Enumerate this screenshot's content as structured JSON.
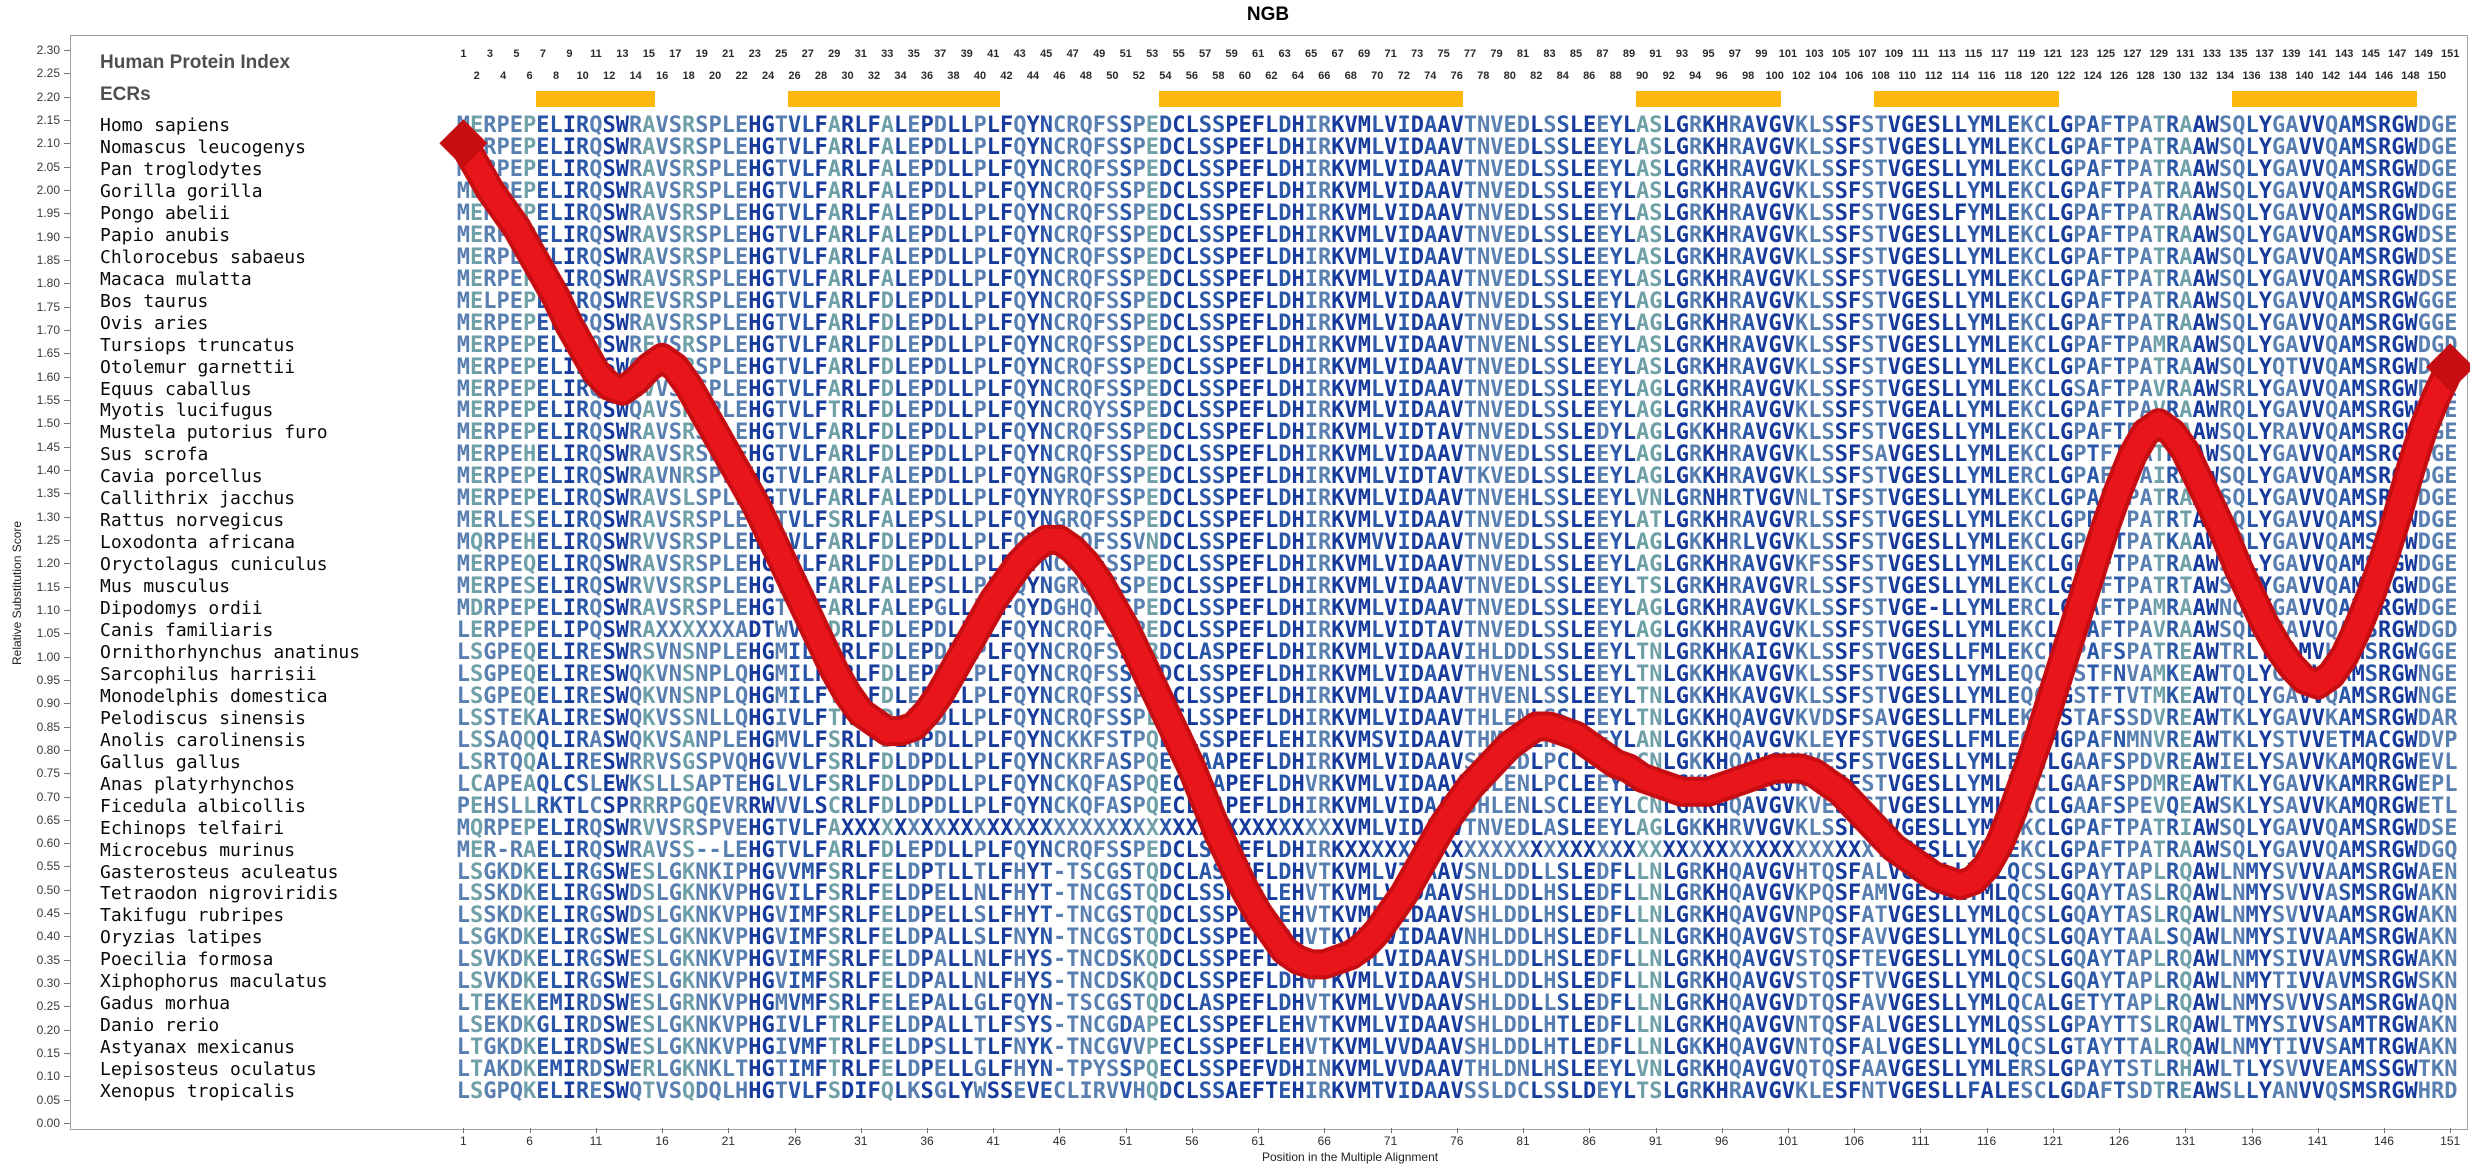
{
  "title": "NGB",
  "panel": {
    "human_protein_index_label": "Human Protein Index",
    "ecrs_label": "ECRs"
  },
  "colors": {
    "curve_red": "#e8151b",
    "curve_red_dark": "#c60d12",
    "ecr_orange": "#fdb80e",
    "conservation_palette": [
      "#163a9c",
      "#2b57a8",
      "#597fb0",
      "#6fa0a8",
      "#9bc49a"
    ],
    "background": "#ffffff"
  },
  "chart_data": {
    "type": "line",
    "title": "NGB",
    "xlabel": "Position in the Multiple Alignment",
    "ylabel": "Relative Substitution Score",
    "ylim": [
      0.0,
      2.3
    ],
    "ytick_step": 0.05,
    "xtick_start": 1,
    "xtick_end": 151,
    "xtick_step": 5,
    "ruler": {
      "odd_start": 1,
      "odd_end": 151,
      "even_start": 2,
      "even_end": 150
    },
    "legend_position": "none",
    "grid": false,
    "scores": [
      2.1,
      2.05,
      2.0,
      1.96,
      1.92,
      1.87,
      1.82,
      1.77,
      1.71,
      1.66,
      1.61,
      1.58,
      1.57,
      1.59,
      1.62,
      1.64,
      1.62,
      1.58,
      1.53,
      1.48,
      1.43,
      1.38,
      1.33,
      1.27,
      1.21,
      1.15,
      1.09,
      1.03,
      0.97,
      0.92,
      0.88,
      0.86,
      0.84,
      0.84,
      0.85,
      0.88,
      0.92,
      0.97,
      1.02,
      1.07,
      1.12,
      1.16,
      1.2,
      1.23,
      1.25,
      1.25,
      1.23,
      1.2,
      1.16,
      1.11,
      1.06,
      1.0,
      0.94,
      0.88,
      0.82,
      0.76,
      0.69,
      0.62,
      0.56,
      0.5,
      0.45,
      0.41,
      0.37,
      0.35,
      0.34,
      0.34,
      0.35,
      0.36,
      0.38,
      0.41,
      0.45,
      0.49,
      0.54,
      0.59,
      0.64,
      0.68,
      0.72,
      0.75,
      0.78,
      0.81,
      0.83,
      0.85,
      0.85,
      0.84,
      0.83,
      0.81,
      0.79,
      0.77,
      0.76,
      0.74,
      0.73,
      0.72,
      0.71,
      0.71,
      0.71,
      0.72,
      0.73,
      0.74,
      0.75,
      0.76,
      0.76,
      0.76,
      0.75,
      0.73,
      0.71,
      0.68,
      0.65,
      0.62,
      0.59,
      0.57,
      0.55,
      0.53,
      0.52,
      0.51,
      0.52,
      0.55,
      0.6,
      0.67,
      0.75,
      0.83,
      0.92,
      1.01,
      1.1,
      1.19,
      1.28,
      1.36,
      1.43,
      1.48,
      1.5,
      1.48,
      1.44,
      1.38,
      1.32,
      1.26,
      1.19,
      1.13,
      1.07,
      1.02,
      0.98,
      0.95,
      0.94,
      0.96,
      1.0,
      1.06,
      1.13,
      1.21,
      1.3,
      1.4,
      1.49,
      1.56,
      1.62
    ],
    "ecr_regions": [
      [
        7,
        15
      ],
      [
        26,
        41
      ],
      [
        54,
        76
      ],
      [
        90,
        100
      ],
      [
        108,
        121
      ],
      [
        135,
        148
      ]
    ],
    "alignment": {
      "species": [
        "Homo sapiens",
        "Nomascus leucogenys",
        "Pan troglodytes",
        "Gorilla gorilla",
        "Pongo abelii",
        "Papio anubis",
        "Chlorocebus sabaeus",
        "Macaca mulatta",
        "Bos taurus",
        "Ovis aries",
        "Tursiops truncatus",
        "Otolemur garnettii",
        "Equus caballus",
        "Myotis lucifugus",
        "Mustela putorius furo",
        "Sus scrofa",
        "Cavia porcellus",
        "Callithrix jacchus",
        "Rattus norvegicus",
        "Loxodonta africana",
        "Oryctolagus cuniculus",
        "Mus musculus",
        "Dipodomys ordii",
        "Canis familiaris",
        "Ornithorhynchus anatinus",
        "Sarcophilus harrisii",
        "Monodelphis domestica",
        "Pelodiscus sinensis",
        "Anolis carolinensis",
        "Gallus gallus",
        "Anas platyrhynchos",
        "Ficedula albicollis",
        "Echinops telfairi",
        "Microcebus murinus",
        "Gasterosteus aculeatus",
        "Tetraodon nigroviridis",
        "Takifugu rubripes",
        "Oryzias latipes",
        "Poecilia formosa",
        "Xiphophorus maculatus",
        "Gadus morhua",
        "Danio rerio",
        "Astyanax mexicanus",
        "Lepisosteus oculatus",
        "Xenopus tropicalis"
      ],
      "sequences": [
        "MERPEPELIRQSWRAVSRSPLEHGTVLFARLFALEPDLLPLFQYNCRQFSSPEDCLSSPEFLDHIRKVMLVIDAAVTNVEDLSSLEEYLASLGRKHRAVGVKLSSFSTVGESLLYMLEKCLGPAFTPATRAAWSQLYGAVVQAMSRGWDGE",
        "MERPEPELIRQSWRAVSRSPLEHGTVLFARLFALEPDLLPLFQYNCRQFSSPEDCLSSPEFLDHIRKVMLVIDAAVTNVEDLSSLEEYLASLGRKHRAVGVKLSSFSTVGESLLYMLEKCLGPAFTPATRAAWSQLYGAVVQAMSRGWDGE",
        "MERPEPELIRQSWRAVSRSPLEHGTVLFARLFALEPDLLPLFQYNCRQFSSPEDCLSSPEFLDHIRKVMLVIDAAVTNVEDLSSLEEYLASLGRKHRAVGVKLSSFSTVGESLLYMLEKCLGPAFTPATRAAWSQLYGAVVQAMSRGWDGE",
        "MDRPEPELIRQSWRAVSRSPLEHGTVLFARLFALEPDLLPLFQYNCRQFSSPEDCLSSPEFLDHIRKVMLVIDAAVTNVEDLSSLEEYLASLGRKHRAVGVKLSSFSTVGESLLYMLEKCLGPAFTPATRAAWSQLYGAVVQAMSRGWDGE",
        "MERPEPELIRQSWRAVSRSPLEHGTVLFARLFALEPDLLPLFQYNCRQFSSPEDCLSSPEFLDHIRKVMLVIDAAVTNVEDLSSLEEYLASLGRKHRAVGVKLSSFSTVGESLFYMLEKCLGPAFTPATRAAWSQLYGAVVQAMSRGWDGE",
        "MERPEPELIRQSWRAVSRSPLEHGTVLFARLFALEPDLLPLFQYNCRQFSSPEDCLSSPEFLDHIRKVMLVIDAAVTNVEDLSSLEEYLASLGRKHRAVGVKLSSFSTVGESLLYMLEKCLGPAFTPATRAAWSQLYGAVVQAMSRGWDSE",
        "MERPEPELIRQSWRAVSRSPLEHGTVLFARLFALEPDLLPLFQYNCRQFSSPEDCLSSPEFLDHIRKVMLVIDAAVTNVEDLSSLEEYLASLGRKHRAVGVKLSSFSTVGESLLYMLEKCLGPAFTPATRAAWSQLYGAVVQAMSRGWDSE",
        "MERPEPELIRQSWRAVSRSPLEHGTVLFARLFALEPDLLPLFQYNCRQFSSPEDCLSSPEFLDHIRKVMLVIDAAVTNVEDLSSLEEYLASLGRKHRAVGVKLSSFSTVGESLLYMLEKCLGPAFTPATRAAWSQLYGAVVQAMSRGWDSE",
        "MELPEPELIRQSWREVSRSPLEHGTVLFARLFDLEPDLLPLFQYNCRQFSSPEDCLSSPEFLDHIRKVMLVIDAAVTNVEDLSSLEEYLAGLGRKHRAVGVKLSSFSTVGESLLYMLEKCLGPAFTPATRAAWSQLYGAVVQAMSRGWGGE",
        "MERPEPELIRQSWRAVSRSPLEHGTVLFARLFDLEPDLLPLFQYNCRQFSSPEDCLSSPEFLDHIRKVMLVIDAAVTNVEDLSSLEEYLAGLGRKHRAVGVKLSSFSTVGESLLYMLEKCLGPAFTPATRAAWSQLYGAVVQAMSRGWGGE",
        "MERPEPELIRQSWREVSRSPLEHGTVLFARLFDLEPDLLPLFQYNCRQFSSPEDCLSSPEFLDHIRKVMLVIDAAVTNVENLSSLEEYLASLGRKHRAVGVKLSSFSTVGESLLYMLEKCLGPAFTPAMRAAWSQLYGAVVQAMSRGWDGD",
        "MERPEPELIRQSWQAVSRSPLEHGTVLFARLFDLEPDLLPLFQYNCRQFSSPEDCLSSPEFLDHIRKVMLVIDAAVTNVEDLSSLEEYLASLGRKHRAVGVKLSSFSTVGESLLYMLEKCLGPAFTPATRAAWSQLYQTVVQAMSRGWDGQ",
        "MERPEPELIRQSWRVVSRSPLEHGTVLFARLFDLEPDLLPLFQYNCRQFSSPEDCLSSPEFLDHIRKVMLVIDAAVTNVEDLSSLEEYLAGLGRKHRAVGVKLSSFSTVGESLLYMLEKCLGSAFTPAVRAAWSRLYGAVVQAMSRGWDGE",
        "MERPEPELIRQSWQAVSRSPLEHGTVLFTRLFDLEPDLLPLFQYNCRQYSSPEDCLSSPEFLDHIRKVMLVIDAAVTNVEDLSSLEEYLAGLGRKHRAVGVKLSSFSTVGEALLYMLEKCLGPAFTPAVRAAWRQLYGAVVQAMSRGWDGE",
        "MERPEPELIRQSWRAVSRSPLEHGTVLFARLFDLEPDLLPLFQYNCRQFSSPEDCLSSPEFLDHIRKVMLVIDTAVTNVEDLSSLEDYLAGLGKKHRAVGVKLSSFSTVGESLLYMLEKCLGPAFTPAMRAAWSQLYRAVVQAMSRGWDGE",
        "MERPEHELIRQSWRAVSRSPLEHGTVLFARLFDLEPDLLPLFQYNCRQFSSPEDCLSSPEFLDHIRKVMLVIDAAVTNVEDLSSLEEYLAGLGRKHRAVGVKLSSFSAVGESLLYMLEKCLGPTFTPATRAAWSQLYGAVVQAMSRGWNGE",
        "MERPEPELIRQSWRAVNRSPLEHGTVLFARLFALEPDLLPLFQYNGRQFSSPEDCLSSPEFLDHIRKVMLVIDTAVTKVEDLSSLEEYLAGLGKKHRAVGVKLSSFSTVGESLLYMLERCLGPAFTPAIRAAWSQLYGAVVQAMSRGWDGE",
        "MERPEPELIRQSWRAVSLSPLEHGTVLFARLFALEPDLLPLFQYNYRQFSSPEDCLSSPEFLDHIRKVMLVIDAAVTNVEHLSSLEEYLVNLGRNHRTVGVNLTSFSTVGESLLYMLEKCLGPAFTPATRAAWSQLYGAVVQAMSRGWDGE",
        "MERLESELIRQSWRAVSRSPLEHGTVLFSRLFALEPSLLPLFQYNGRQFSSPEDCLSSPEFLDHIRKVMLVIDAAVTNVEDLSSLEEYLATLGRKHRAVGVRLSSFSTVGESLLYMLEKCLGPDFTPATRTAWSQLYGAVVQAMSRGWDGE",
        "MQRPEHELIRQSWRVVSRSPLEHGTVLFARLFDLEPDLLPLFQYNCRQFSSVNDCLSSPEFLDHIRKVMVVIDAAVTNVEDLSSLEEYLAGLGKKHRLVGVKLSSFSTVGESLLYMLEKCLGPAFTPATKAAWSQLYGAVVQAMSRGWDGE",
        "MERPEQELIRQSWRAVSRSPLEHGTVLFARLFDLEPDLLPLFQYNCRQFSSPEDCLSSPEFLDHIRKVMLVIDAAVTNVEDLSSLEEYLAGLGRKHRAVGVKFSSFSTVGESLLYMLEKCLGPAFTPATRAAWSQLYGAVVQAMSRGWDGE",
        "MERPESELIRQSWRVVSRSPLEHGTVLFARLFALEPSLLPLFQYNGRQFSSPEDCLSSPEFLDHIRKVMLVIDAAVTNVEDLSSLEEYLTSLGRKHRAVGVRLSSFSTVGESLLYMLEKCLGPDFTPATRTAWSRLYGAVVQAMSRGWDGE",
        "MDRPEPELIRQSWRAVSRSPLEHGTVLFARLFALEPGLLPLFQYDGHQFSSPEDCLSSPEFLDHIRKVMLVIDAAVTNVEDLSSLEEYLAGLGRKHRAVGVKLSSFSTVGE-LLYMLERCLGPAFTPAMRAAWNQLYGAVVQAMSRGWDGE",
        "LERPEPELIPQSWRAXXXXXXADTWVSPDRLFDLEPDLLPLFQYNCRQFSSPEDCLSSPEFLDHIRKVMLVIDTAVTNVEDLSSLEEYLAGLGKKHRAVGVKLSSFSTVGESLLYMLEKCLGPAFTPAVRAAWSQLYGAVVQAMSRGWDGD",
        "LSGPEQELIRESWRSVNSNPLEHGMILFTRLFDLEPDLLPLFQYNCRQFSSPRDCLASPEFLDHIRKVMLVIDAAVIHLDDLSSLEEYLTNLGRKHKAIGVKLSSFSTVGESLLFMLEKCLGPAFSPATREAWTRLYTAMVHAMSRGWGGE",
        "LSGPEQELIRESWQKVNSNPLQHGMILFTRLFDLEPDLLPLFQYNCRQFSSPQDCLSSPEFLDHIRKVMLVIDAAVTHVENLSSLEEYLTNLGKKHKAVGVKLSSFSTVGESLLYMLEQCLGSTFNVAMKEAWTQLYGAVVQAMSRGWNGE",
        "LSGPEQELIRESWQKVNSNPLQHGMILFTRLFDLEPDLLPLFQYNCRQFSSPQDCLSSPEFLDHIRKVMLVIDAAVTHVENLSSLEEYLTNLGKKHKAVGVKLSSFSTVGESLLYMLEQCLGSTFTVTMKEAWTQLYGAVVQAMSRGWNGE",
        "LSSTEKALIRESWQKVSSNLLQHGIVLFTRLFDLDPDLLPLFQYNCRQFSSPLECLSSPEFLDHIRKVMLVIDAAVTHLENLSSLEEYLTNLGKKHQAVGVKVDSFSAVGESLLFMLEKCLSTAFSSDVREAWTKLYGAVVKAMSRGWDAR",
        "LSSAQQQLIRASWQKVSANPLEHGMVLFSRLFDLNPDLLPLFQYNCKKFSTPQECLSSPEFLEHIRKVMSVIDAAVTHMENLHCLAEYLANLGKKHQAVGVKLEYFSTVGESLLFMLEQCHGPAFNMNVREAWTKLYSTVVETMACGWDVP",
        "LSRTQQALIRESWRRVSGSPVQHGVVLFSRLFDLDPDLLPLFQYNCKRFASPQECLAAPEFLDHIRKVMLVIDAAVSHLEDLPCLEEYLCNLGKKHQAVGVKVESFSTVGESLLYMLEKCLGAAFSPDVREAWIELYSAVVKAMQRGWEVL",
        "LCAPEAQLCSLEWKSLLSAPTEHGLVLFSRLFDLDPDLLPLFQYNCKQFASPQECLSAPEFLDHVRKVMLVIDAAVSHLENLPCLEEYLCNLGKKHQAIGVKVESFSTVGESLLYMLEKCLGAAFSPDMREAWTKLYGAVVKAMRRGWEPL",
        "PEHSLLRKTLCSPRRRPGQEVRRWVVLSCRLFDLDPDLLPLFQYNCKQFASPQECLSAPEFLDHIRKVMLVIDAAVSHLENLSCLEEYLCNLGKKHQAVGVKVESFSTVGESLLYMLEKCLGAAFSPEVQEAWSKLYSAVVKAMQRGWETL",
        "MQRPEPELIRQSWRVVSRSPVEHGTVLFAXXXXXXXXXXXXXXXXXXXXXXXXXXXXXXXXXXXXXXVMLVIDAAVTNVEDLASLEEYLAGLGKKHRVVGVKLSSFSTVGESLLYMLEKCLGPAFTPATRIAWSQLYGAVVQAMSRGWDSE",
        "MER-RAELIRQSWRAVSS--LEHGTVLFARLFDLEPDLLPLFQYNCRQFSSPEDCLSSPEFLDHIRKXXXXXXXXXXXXXXXXXXXXXXXXXXXXXXXXXXXXXXXXTVGESLLYMLEKCLGPAFTPATRAAWSQLYGAVVQAMSRGWDGQ",
        "LSGKDKELIRGSWESLGKNKIPHGVVMFSRLFELDPTLLTLFHYT-TSCGSTQDCLASPEFLDHVTKVMLVIDAAVSNLDDLLSLEDFLLNLGRKHQAVGVHTQSFALVGESLLYMLQCSLGPAYTAPLRQAWLNMYSVVVAAMSRGWAEN",
        "LSSKDKELIRGSWDSLGKNKVPHGVILFSRLFELDPELLNLFHYT-TNCGSTQDCLSSPEFLEHVTKVMLVIDAAVSHLDDLHSLEDFLLNLGRKHQAVGVKPQSFAMVGESLLYMLQCSLGQAYTASLRQAWLNMYSVVVASMSRGWAKN",
        "LSSKDKELIRGSWDSLGKNKVPHGVIMFSRLFELDPELLSLFHYT-TNCGSTQDCLSSPEFLEHVTKVMLVIDAAVSHLDDLHSLEDFLLNLGRKHQAVGVNPQSFATVGESLLYMLQCSLGQAYTASLRQAWLNMYSVVVAAMSRGWAKN",
        "LSGKDKELIRGSWESLGKNKVPHGVIMFSRLFELDPALLSLFNYN-TNCGSTQDCLSSPEFLDHVTKVMLVIDAAVNHLDDLHSLEDFLLNLGRKHQAVGVSTQSFAVVGESLLYMLQCSLGQAYTAALSQAWLNMYSIVVAAMSRGWAKN",
        "LSVKDKELIRGSWESLGKNKVPHGVIMFSRLFELDPALLNLFHYS-TNCDSKQDCLSSPEFLDHVTKVMLVIDAAVSHLDDLHSLEDFLLNLGRKHQAVGVSTQSFTEVGESLLYMLQCSLGQAYTAPLRQAWLNMYSIVVAVMSRGWAKN",
        "LSVKDKELIRGSWESLGKNKVPHGVIMFSRLFELDPALLNLFHYS-TNCDSKQDCLSSPEFLDHVTKVMLVIDAAVSHLDDLHSLEDFLLNLGRKHQAVGVSTQSFTVVGESLLYMLQCSLGQAYTAPLRQAWLNMYTIVVAVMSRGWSKN",
        "LTEKEKEMIRDSWESLGRNKVPHGMVMFSRLFELEPALLGLFQYN-TSCGSTQDCLASPEFLDHVTKVMLVVDAAVSHLDDLLSLEDFLLNLGRKHQAVGVDTQSFAVVGESLLYMLQCALGETYTAPLRQAWLNMYSVVVSAMSRGWAQN",
        "LSEKDKGLIRDSWESLGKNKVPHGIVLFTRLFELDPALLTLFSYS-TNCGDAPECLSSPEFLEHVTKVMLVIDAAVSHLDDLHTLEDFLLNLGRKHQAVGVNTQSFALVGESLLYMLQSSLGPAYTTSLRQAWLTMYSIVVSAMTRGWAKN",
        "LTGKDKELIRDSWESLGKNKVPHGIVMFTRLFELDPSLLTLFNYK-TNCGVVPECLSSPEFLEHVTKVMLVVDAAVSHLDDLHTLEDFLLNLGKKHQAVGVNTQSFALVGESLLYMLQCSLGTAYTTALRQAWLNMYTIVVSAMTRGWAKN",
        "LTAKDKEMIRDSWERLGKNKLTHGTIMFTRLFELDPELLGLFHYN-TPYSSPQECLSSPEFVDHINKVMLVVDAAVTHLDNLHSLEEYLVNLGRKHQAVGVQTQSFAAVGESLLYMLERSLGPAYTSTLRHAWLTLYSVVVEAMSSGWTKN",
        "LSGPQKELIRESWQTVSQDQLHHGTVLFSDIFQLKSGLYWSSEVECLIRVVHQDCLSSAEFTEHIRKVMTVIDAAVSSLDCLSSLDEYLTSLGRKHRAVGVKLESFNTVGESLLFALESCLGDAFTSDTREAWSLLYANVVQSMSRGWHRD"
      ]
    }
  }
}
